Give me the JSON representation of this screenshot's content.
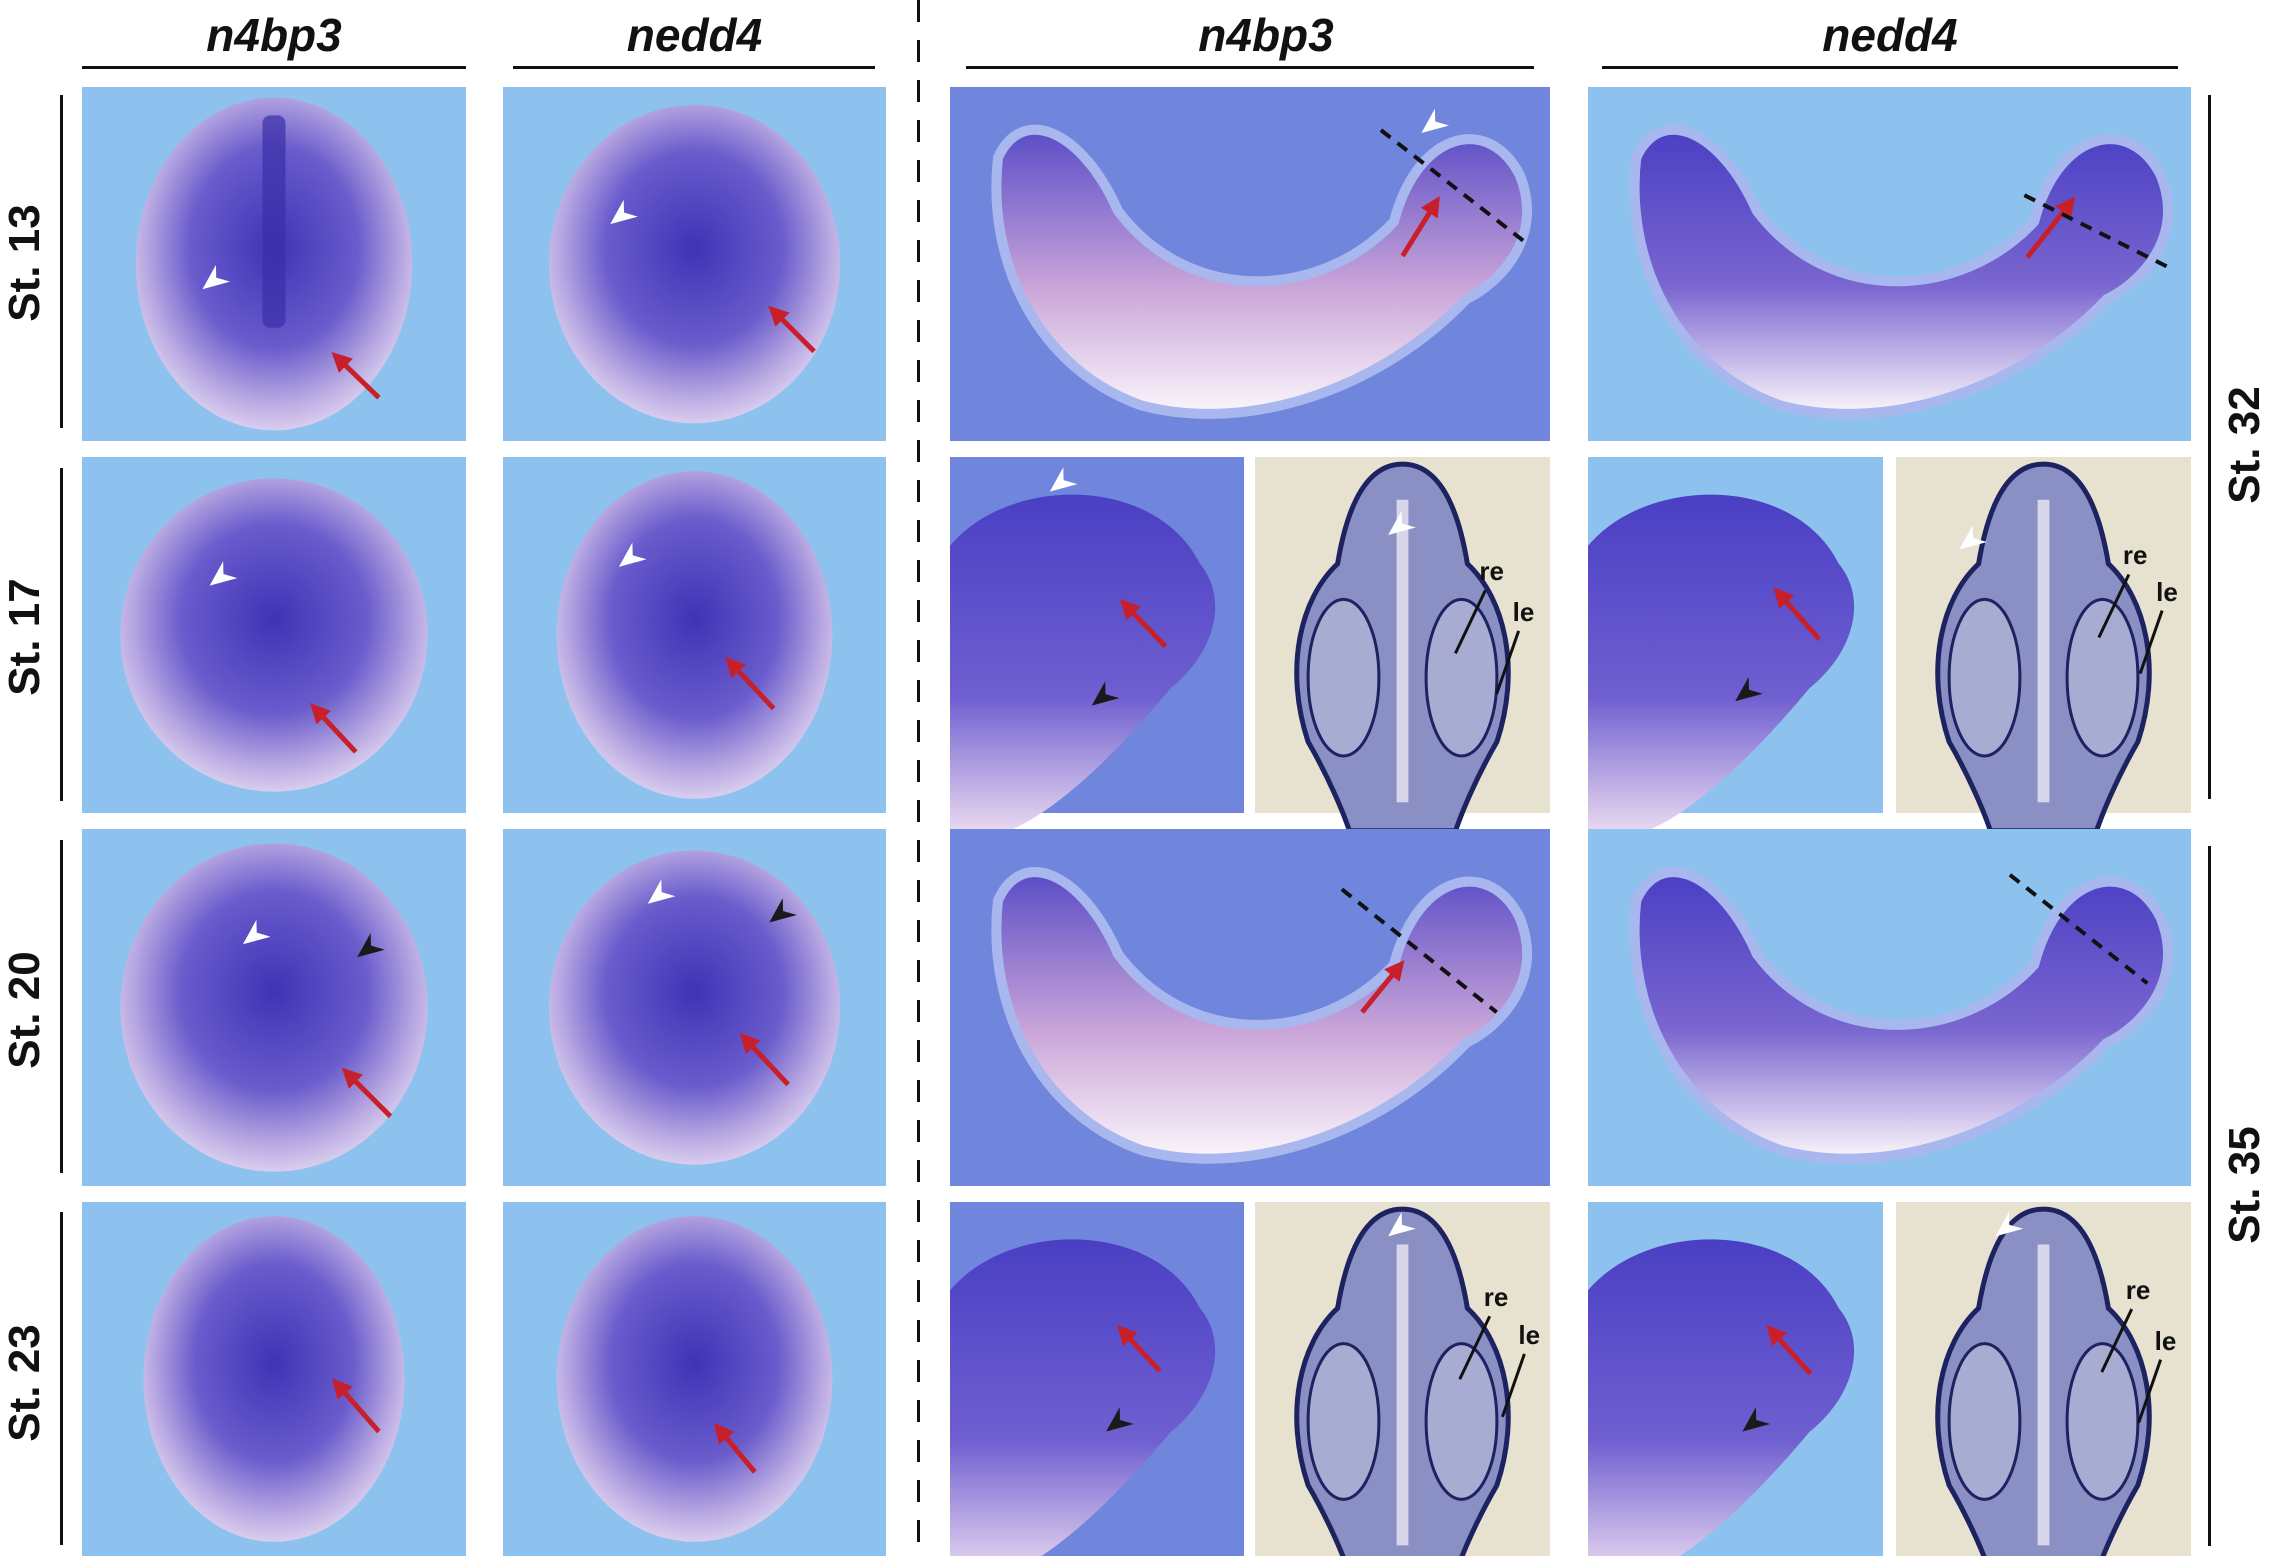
{
  "columns": [
    {
      "label": "n4bp3"
    },
    {
      "label": "nedd4"
    },
    {
      "label": "n4bp3"
    },
    {
      "label": "nedd4"
    }
  ],
  "stages_left": [
    "St. 13",
    "St. 17",
    "St. 20",
    "St. 23"
  ],
  "stages_right": [
    "St. 32",
    "St. 35"
  ],
  "annotations": {
    "re": "re",
    "le": "le"
  },
  "colors": {
    "red_arrow": "#c8202a",
    "white_arrowhead": "#ffffff",
    "black_arrowhead": "#1a1a1a",
    "background_light": "#8ec2ee",
    "background_dark": "#6f86dc",
    "section_background": "#e6e2cf",
    "stain": "#4b3fbf"
  }
}
